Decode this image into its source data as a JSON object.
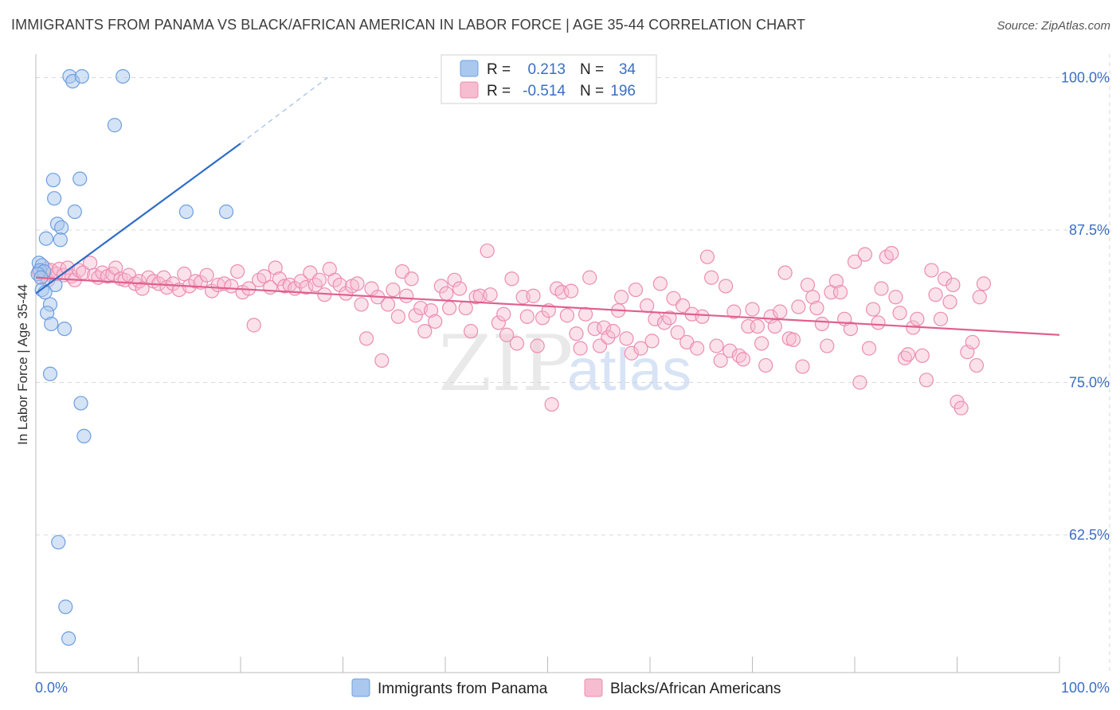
{
  "title": "IMMIGRANTS FROM PANAMA VS BLACK/AFRICAN AMERICAN IN LABOR FORCE | AGE 35-44 CORRELATION CHART",
  "source": "Source: ZipAtlas.com",
  "watermark": {
    "zip": "ZIP",
    "atlas": "atlas"
  },
  "colors": {
    "blue_fill": "#aac8ee",
    "blue_stroke": "#6d9fe0",
    "blue_line": "#2c6cc8",
    "pink_fill": "#f6bcd0",
    "pink_stroke": "#ec8db0",
    "pink_line": "#e0608e",
    "grid": "#d9d9d9",
    "axis_label": "#3a6fc4"
  },
  "legend": {
    "rows": [
      {
        "r_label": "R =",
        "r_value": "0.213",
        "n_label": "N =",
        "n_value": "34"
      },
      {
        "r_label": "R =",
        "r_value": "-0.514",
        "n_label": "N =",
        "n_value": "196"
      }
    ]
  },
  "chart_data": {
    "type": "scatter",
    "title": "IMMIGRANTS FROM PANAMA VS BLACK/AFRICAN AMERICAN IN LABOR FORCE | AGE 35-44 CORRELATION CHART",
    "xlabel": "",
    "ylabel": "In Labor Force | Age 35-44",
    "xlim": [
      0,
      100
    ],
    "ylim": [
      52,
      101.5
    ],
    "x_tick_labels": [
      "0.0%",
      "100.0%"
    ],
    "y_ticks": [
      62.5,
      75.0,
      87.5,
      100.0
    ],
    "y_tick_labels": [
      "62.5%",
      "75.0%",
      "87.5%",
      "100.0%"
    ],
    "grid": true,
    "legend_position": "top-center",
    "series": [
      {
        "name": "Immigrants from Panama",
        "color": "blue",
        "trend": {
          "x0": 0,
          "y0": 82.3,
          "x1": 20,
          "y1": 94.6,
          "dashed_to_x": 28.5,
          "dashed_to_y": 100.0
        },
        "points": [
          [
            3.3,
            100.1
          ],
          [
            3.6,
            99.7
          ],
          [
            4.5,
            100.1
          ],
          [
            8.5,
            100.1
          ],
          [
            7.7,
            96.1
          ],
          [
            1.7,
            91.6
          ],
          [
            4.3,
            91.7
          ],
          [
            1.8,
            90.1
          ],
          [
            3.8,
            89.0
          ],
          [
            14.7,
            89.0
          ],
          [
            18.6,
            89.0
          ],
          [
            2.1,
            88.0
          ],
          [
            2.5,
            87.7
          ],
          [
            1.0,
            86.8
          ],
          [
            2.4,
            86.7
          ],
          [
            0.3,
            84.8
          ],
          [
            0.6,
            84.6
          ],
          [
            0.4,
            84.2
          ],
          [
            0.8,
            84.1
          ],
          [
            0.2,
            83.9
          ],
          [
            0.5,
            83.6
          ],
          [
            1.9,
            83.0
          ],
          [
            0.6,
            82.6
          ],
          [
            0.9,
            82.4
          ],
          [
            1.4,
            81.4
          ],
          [
            1.1,
            80.7
          ],
          [
            1.5,
            79.8
          ],
          [
            2.8,
            79.4
          ],
          [
            1.4,
            75.7
          ],
          [
            4.4,
            73.3
          ],
          [
            4.7,
            70.6
          ],
          [
            2.2,
            61.9
          ],
          [
            2.9,
            56.6
          ],
          [
            3.2,
            54.0
          ]
        ]
      },
      {
        "name": "Blacks/African Americans",
        "color": "pink",
        "trend": {
          "x0": 0,
          "y0": 83.6,
          "x1": 100,
          "y1": 78.9
        },
        "points": [
          [
            0.3,
            84.1
          ],
          [
            0.5,
            83.6
          ],
          [
            0.8,
            83.8
          ],
          [
            1.0,
            84.3
          ],
          [
            1.2,
            83.4
          ],
          [
            1.5,
            84.2
          ],
          [
            2.0,
            83.9
          ],
          [
            2.3,
            84.3
          ],
          [
            2.7,
            83.8
          ],
          [
            3.1,
            84.4
          ],
          [
            3.5,
            83.7
          ],
          [
            3.8,
            83.4
          ],
          [
            4.2,
            84.2
          ],
          [
            4.6,
            84.0
          ],
          [
            5.3,
            84.8
          ],
          [
            5.7,
            83.8
          ],
          [
            6.1,
            83.6
          ],
          [
            6.5,
            84.0
          ],
          [
            7.0,
            83.7
          ],
          [
            7.5,
            83.9
          ],
          [
            7.8,
            84.4
          ],
          [
            8.3,
            83.5
          ],
          [
            8.7,
            83.4
          ],
          [
            9.1,
            83.8
          ],
          [
            9.7,
            83.1
          ],
          [
            10.1,
            83.3
          ],
          [
            10.4,
            82.7
          ],
          [
            11.0,
            83.6
          ],
          [
            11.5,
            83.3
          ],
          [
            12.0,
            83.1
          ],
          [
            12.5,
            83.6
          ],
          [
            12.8,
            82.8
          ],
          [
            13.4,
            83.1
          ],
          [
            14.0,
            82.6
          ],
          [
            14.5,
            83.9
          ],
          [
            15.0,
            82.9
          ],
          [
            15.6,
            83.3
          ],
          [
            16.1,
            83.2
          ],
          [
            16.7,
            83.8
          ],
          [
            17.2,
            82.5
          ],
          [
            17.8,
            83.0
          ],
          [
            18.4,
            83.1
          ],
          [
            19.1,
            82.9
          ],
          [
            19.7,
            84.1
          ],
          [
            20.2,
            82.4
          ],
          [
            20.8,
            82.7
          ],
          [
            21.3,
            79.7
          ],
          [
            21.8,
            83.4
          ],
          [
            22.3,
            83.7
          ],
          [
            22.9,
            82.8
          ],
          [
            23.4,
            84.4
          ],
          [
            23.8,
            83.5
          ],
          [
            24.3,
            82.9
          ],
          [
            24.8,
            83.0
          ],
          [
            25.3,
            82.7
          ],
          [
            25.9,
            83.3
          ],
          [
            26.4,
            82.8
          ],
          [
            26.8,
            84.0
          ],
          [
            27.3,
            83.0
          ],
          [
            27.7,
            83.4
          ],
          [
            28.2,
            82.2
          ],
          [
            28.7,
            84.3
          ],
          [
            29.2,
            83.4
          ],
          [
            29.7,
            83.0
          ],
          [
            30.3,
            82.3
          ],
          [
            30.9,
            82.9
          ],
          [
            31.4,
            83.1
          ],
          [
            31.8,
            81.4
          ],
          [
            32.3,
            78.6
          ],
          [
            32.8,
            82.7
          ],
          [
            33.4,
            82.0
          ],
          [
            33.8,
            76.8
          ],
          [
            34.4,
            81.4
          ],
          [
            34.9,
            82.6
          ],
          [
            35.4,
            80.4
          ],
          [
            35.8,
            84.1
          ],
          [
            36.2,
            82.1
          ],
          [
            36.7,
            83.5
          ],
          [
            37.1,
            80.5
          ],
          [
            37.6,
            81.1
          ],
          [
            38.0,
            79.2
          ],
          [
            38.6,
            80.9
          ],
          [
            39.0,
            80.0
          ],
          [
            39.6,
            82.9
          ],
          [
            40.1,
            82.3
          ],
          [
            40.4,
            81.1
          ],
          [
            40.9,
            83.4
          ],
          [
            41.4,
            82.7
          ],
          [
            42.0,
            81.1
          ],
          [
            42.5,
            79.2
          ],
          [
            43.0,
            82.0
          ],
          [
            43.4,
            82.1
          ],
          [
            44.1,
            85.8
          ],
          [
            44.4,
            82.2
          ],
          [
            45.2,
            79.9
          ],
          [
            45.7,
            80.6
          ],
          [
            46.0,
            78.9
          ],
          [
            46.5,
            83.5
          ],
          [
            47.0,
            78.2
          ],
          [
            47.6,
            82.0
          ],
          [
            48.0,
            80.4
          ],
          [
            48.6,
            82.1
          ],
          [
            49.0,
            78.0
          ],
          [
            49.5,
            80.3
          ],
          [
            50.1,
            80.9
          ],
          [
            50.4,
            73.2
          ],
          [
            50.9,
            82.7
          ],
          [
            51.4,
            82.4
          ],
          [
            51.9,
            80.5
          ],
          [
            52.3,
            82.5
          ],
          [
            52.8,
            79.0
          ],
          [
            53.2,
            77.8
          ],
          [
            53.7,
            80.6
          ],
          [
            54.1,
            83.6
          ],
          [
            54.6,
            79.4
          ],
          [
            55.1,
            78.0
          ],
          [
            55.5,
            79.5
          ],
          [
            55.9,
            78.7
          ],
          [
            56.4,
            79.2
          ],
          [
            56.9,
            80.9
          ],
          [
            57.2,
            82.0
          ],
          [
            57.7,
            78.6
          ],
          [
            58.2,
            77.4
          ],
          [
            58.6,
            82.6
          ],
          [
            59.1,
            77.8
          ],
          [
            59.7,
            81.3
          ],
          [
            60.2,
            78.4
          ],
          [
            60.5,
            80.2
          ],
          [
            61.0,
            83.1
          ],
          [
            61.4,
            79.9
          ],
          [
            61.9,
            80.3
          ],
          [
            62.3,
            81.9
          ],
          [
            62.7,
            79.1
          ],
          [
            63.2,
            81.3
          ],
          [
            63.6,
            78.3
          ],
          [
            64.1,
            80.6
          ],
          [
            64.6,
            77.8
          ],
          [
            65.1,
            80.4
          ],
          [
            65.6,
            85.3
          ],
          [
            66.0,
            83.6
          ],
          [
            66.5,
            78.0
          ],
          [
            66.9,
            76.8
          ],
          [
            67.4,
            82.9
          ],
          [
            67.8,
            77.6
          ],
          [
            68.2,
            80.8
          ],
          [
            68.7,
            77.2
          ],
          [
            69.1,
            76.9
          ],
          [
            69.6,
            79.6
          ],
          [
            70.0,
            81.0
          ],
          [
            70.5,
            79.6
          ],
          [
            70.9,
            78.2
          ],
          [
            71.3,
            76.4
          ],
          [
            71.8,
            80.4
          ],
          [
            72.2,
            79.6
          ],
          [
            72.7,
            80.8
          ],
          [
            73.2,
            84.0
          ],
          [
            73.6,
            78.6
          ],
          [
            74.0,
            78.5
          ],
          [
            74.5,
            81.2
          ],
          [
            74.9,
            76.3
          ],
          [
            75.4,
            83.0
          ],
          [
            75.9,
            82.0
          ],
          [
            76.3,
            81.1
          ],
          [
            76.8,
            79.8
          ],
          [
            77.3,
            78.0
          ],
          [
            77.7,
            82.4
          ],
          [
            78.2,
            83.3
          ],
          [
            78.6,
            82.4
          ],
          [
            79.0,
            80.2
          ],
          [
            79.6,
            79.4
          ],
          [
            80.0,
            84.9
          ],
          [
            80.5,
            75.0
          ],
          [
            81.0,
            85.5
          ],
          [
            81.4,
            77.8
          ],
          [
            81.8,
            81.0
          ],
          [
            82.3,
            79.9
          ],
          [
            82.6,
            82.7
          ],
          [
            83.1,
            85.3
          ],
          [
            83.6,
            85.6
          ],
          [
            84.0,
            82.0
          ],
          [
            84.4,
            80.7
          ],
          [
            84.9,
            77.0
          ],
          [
            85.2,
            77.3
          ],
          [
            85.7,
            79.5
          ],
          [
            86.1,
            80.2
          ],
          [
            86.6,
            77.2
          ],
          [
            87.0,
            75.2
          ],
          [
            87.5,
            84.2
          ],
          [
            87.9,
            82.2
          ],
          [
            88.4,
            80.2
          ],
          [
            88.8,
            83.5
          ],
          [
            89.3,
            81.6
          ],
          [
            89.6,
            83.0
          ],
          [
            90.0,
            73.4
          ],
          [
            90.4,
            72.9
          ],
          [
            91.0,
            77.5
          ],
          [
            91.5,
            78.3
          ],
          [
            91.9,
            76.4
          ],
          [
            92.2,
            82.0
          ],
          [
            92.6,
            83.1
          ]
        ]
      }
    ]
  },
  "bottom_legend": {
    "items": [
      {
        "label": "Immigrants from Panama",
        "color": "blue"
      },
      {
        "label": "Blacks/African Americans",
        "color": "pink"
      }
    ]
  }
}
